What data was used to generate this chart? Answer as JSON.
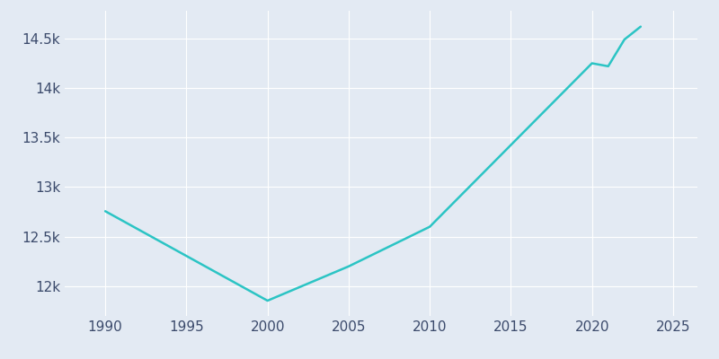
{
  "years": [
    1990,
    2000,
    2005,
    2010,
    2020,
    2021,
    2022,
    2023
  ],
  "population": [
    12757,
    11854,
    12200,
    12600,
    14250,
    14220,
    14490,
    14620
  ],
  "line_color": "#2BC4C4",
  "bg_color": "#E3EAF3",
  "figure_bg": "#E3EAF3",
  "grid_color": "#FFFFFF",
  "tick_color": "#3B4A6B",
  "xlim": [
    1987.5,
    2026.5
  ],
  "ylim": [
    11700,
    14780
  ],
  "xticks": [
    1990,
    1995,
    2000,
    2005,
    2010,
    2015,
    2020,
    2025
  ],
  "yticks": [
    12000,
    12500,
    13000,
    13500,
    14000,
    14500
  ],
  "linewidth": 1.8,
  "tick_fontsize": 11
}
